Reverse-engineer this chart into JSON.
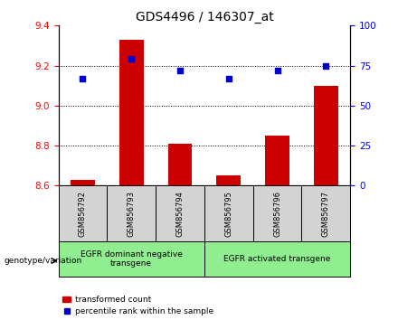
{
  "title": "GDS4496 / 146307_at",
  "samples": [
    "GSM856792",
    "GSM856793",
    "GSM856794",
    "GSM856795",
    "GSM856796",
    "GSM856797"
  ],
  "bar_values": [
    8.63,
    9.33,
    8.81,
    8.65,
    8.85,
    9.1
  ],
  "percentile_values": [
    67,
    79,
    72,
    67,
    72,
    75
  ],
  "bar_color": "#cc0000",
  "dot_color": "#0000cc",
  "ylim_left": [
    8.6,
    9.4
  ],
  "ylim_right": [
    0,
    100
  ],
  "yticks_left": [
    8.6,
    8.8,
    9.0,
    9.2,
    9.4
  ],
  "yticks_right": [
    0,
    25,
    50,
    75,
    100
  ],
  "grid_values": [
    8.8,
    9.0,
    9.2
  ],
  "bar_width": 0.5,
  "group1_label": "EGFR dominant negative\ntransgene",
  "group2_label": "EGFR activated transgene",
  "genotype_label": "genotype/variation",
  "legend_bar_label": "transformed count",
  "legend_dot_label": "percentile rank within the sample",
  "group_bg_color": "#90ee90",
  "sample_bg_color": "#d3d3d3"
}
